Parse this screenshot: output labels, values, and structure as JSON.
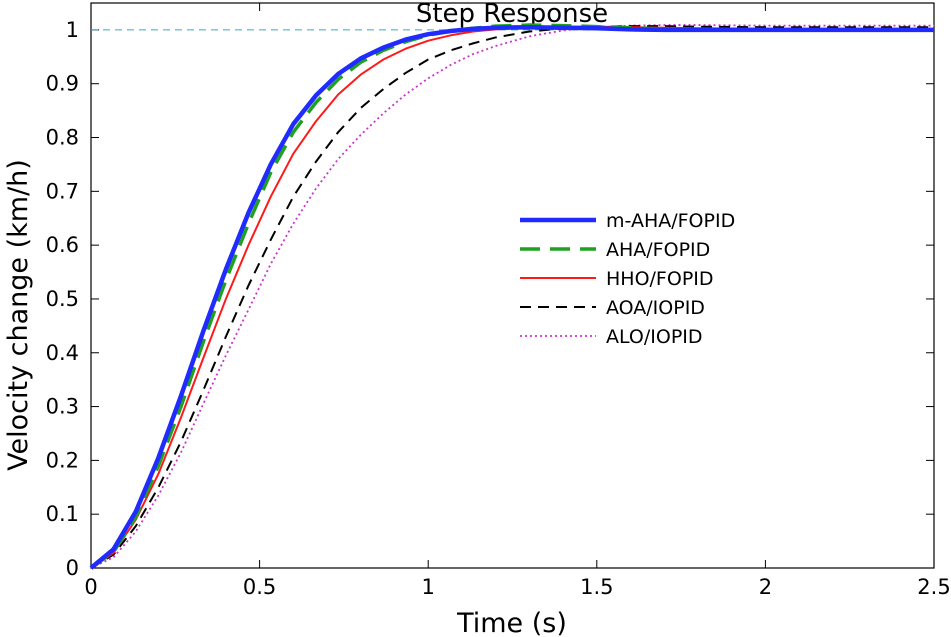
{
  "chart_data": {
    "type": "line",
    "title": "Step Response",
    "xlabel": "Time (s)",
    "ylabel": "Velocity change (km/h)",
    "xlim": [
      0,
      2.5
    ],
    "ylim": [
      0,
      1.05
    ],
    "xticks": [
      0,
      0.5,
      1,
      1.5,
      2,
      2.5
    ],
    "xtick_labels": [
      "0",
      "0.5",
      "1",
      "1.5",
      "2",
      "2.5"
    ],
    "yticks": [
      0,
      0.1,
      0.2,
      0.3,
      0.4,
      0.5,
      0.6,
      0.7,
      0.8,
      0.9,
      1
    ],
    "ytick_labels": [
      "0",
      "0.1",
      "0.2",
      "0.3",
      "0.4",
      "0.5",
      "0.6",
      "0.7",
      "0.8",
      "0.9",
      "1"
    ],
    "grid": false,
    "legend_position": "center-right",
    "reference_line": {
      "y": 1,
      "color": "#3aa6c8",
      "style": "dashed"
    },
    "series": [
      {
        "name": "m-AHA/FOPID",
        "color": "#1f2bff",
        "style": "solid-thick",
        "x": [
          0,
          0.067,
          0.133,
          0.2,
          0.267,
          0.333,
          0.4,
          0.467,
          0.533,
          0.6,
          0.667,
          0.733,
          0.8,
          0.867,
          0.933,
          1.0,
          1.067,
          1.133,
          1.2,
          1.3,
          1.4,
          1.5,
          1.6,
          1.7,
          1.8,
          2.0,
          2.2,
          2.5
        ],
        "y": [
          0,
          0.035,
          0.105,
          0.205,
          0.32,
          0.44,
          0.555,
          0.66,
          0.75,
          0.825,
          0.878,
          0.918,
          0.947,
          0.967,
          0.982,
          0.992,
          0.998,
          1.002,
          1.004,
          1.005,
          1.004,
          1.003,
          1.001,
          1.0,
          1.0,
          1.0,
          1.0,
          1.0
        ]
      },
      {
        "name": "AHA/FOPID",
        "color": "#1fa01f",
        "style": "long-dash",
        "x": [
          0,
          0.067,
          0.133,
          0.2,
          0.267,
          0.333,
          0.4,
          0.467,
          0.533,
          0.6,
          0.667,
          0.733,
          0.8,
          0.867,
          0.933,
          1.0,
          1.067,
          1.133,
          1.2,
          1.3,
          1.4,
          1.5,
          1.6,
          1.7,
          1.8,
          2.0,
          2.2,
          2.5
        ],
        "y": [
          0,
          0.03,
          0.095,
          0.19,
          0.3,
          0.42,
          0.535,
          0.64,
          0.735,
          0.81,
          0.865,
          0.908,
          0.94,
          0.962,
          0.978,
          0.99,
          0.998,
          1.003,
          1.007,
          1.009,
          1.008,
          1.006,
          1.004,
          1.002,
          1.001,
          1.0,
          1.0,
          1.0
        ]
      },
      {
        "name": "HHO/FOPID",
        "color": "#ff1a1a",
        "style": "solid",
        "x": [
          0,
          0.067,
          0.133,
          0.2,
          0.267,
          0.333,
          0.4,
          0.467,
          0.533,
          0.6,
          0.667,
          0.733,
          0.8,
          0.867,
          0.933,
          1.0,
          1.067,
          1.133,
          1.2,
          1.3,
          1.4,
          1.5,
          1.6,
          1.7,
          1.8,
          2.0,
          2.2,
          2.5
        ],
        "y": [
          0,
          0.028,
          0.09,
          0.175,
          0.28,
          0.39,
          0.5,
          0.6,
          0.69,
          0.77,
          0.83,
          0.88,
          0.917,
          0.945,
          0.965,
          0.98,
          0.99,
          0.997,
          1.001,
          1.004,
          1.006,
          1.006,
          1.005,
          1.004,
          1.003,
          1.002,
          1.002,
          1.002
        ]
      },
      {
        "name": "AOA/IOPID",
        "color": "#000000",
        "style": "dashed",
        "x": [
          0,
          0.067,
          0.133,
          0.2,
          0.267,
          0.333,
          0.4,
          0.467,
          0.533,
          0.6,
          0.667,
          0.733,
          0.8,
          0.867,
          0.933,
          1.0,
          1.067,
          1.133,
          1.2,
          1.3,
          1.4,
          1.5,
          1.6,
          1.7,
          1.8,
          2.0,
          2.2,
          2.5
        ],
        "y": [
          0,
          0.025,
          0.078,
          0.15,
          0.235,
          0.33,
          0.43,
          0.525,
          0.61,
          0.69,
          0.755,
          0.81,
          0.855,
          0.89,
          0.92,
          0.945,
          0.962,
          0.975,
          0.986,
          0.997,
          1.003,
          1.006,
          1.007,
          1.007,
          1.006,
          1.005,
          1.005,
          1.005
        ]
      },
      {
        "name": "ALO/IOPID",
        "color": "#cc33cc",
        "style": "dotted",
        "x": [
          0,
          0.067,
          0.133,
          0.2,
          0.267,
          0.333,
          0.4,
          0.467,
          0.533,
          0.6,
          0.667,
          0.733,
          0.8,
          0.867,
          0.933,
          1.0,
          1.067,
          1.133,
          1.2,
          1.3,
          1.4,
          1.5,
          1.6,
          1.7,
          1.8,
          2.0,
          2.2,
          2.5
        ],
        "y": [
          0,
          0.02,
          0.068,
          0.135,
          0.215,
          0.305,
          0.395,
          0.48,
          0.565,
          0.64,
          0.705,
          0.76,
          0.805,
          0.845,
          0.88,
          0.91,
          0.935,
          0.955,
          0.97,
          0.988,
          0.999,
          1.005,
          1.008,
          1.009,
          1.009,
          1.008,
          1.008,
          1.008
        ]
      }
    ]
  }
}
